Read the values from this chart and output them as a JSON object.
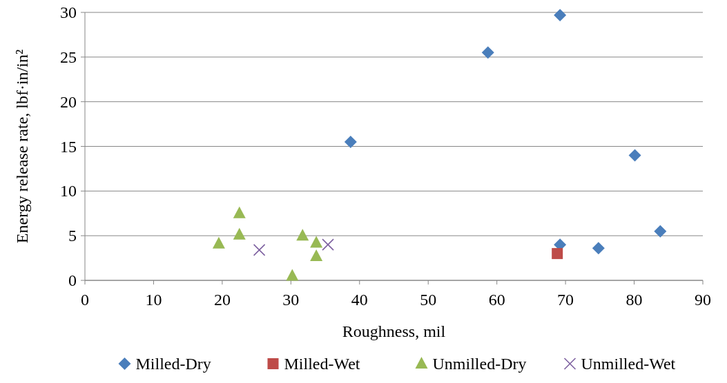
{
  "chart_data": {
    "type": "scatter",
    "xlabel": "Roughness, mil",
    "ylabel": "Energy release rate, lbf·in/in²",
    "xlim": [
      0,
      90
    ],
    "xticks": [
      0,
      10,
      20,
      30,
      40,
      50,
      60,
      70,
      80,
      90
    ],
    "ylim": [
      0,
      30
    ],
    "yticks": [
      0,
      5,
      10,
      15,
      20,
      25,
      30
    ],
    "grid": "y",
    "legend": "bottom",
    "series": [
      {
        "name": "Milled-Dry",
        "color": "#4a7ebb",
        "marker": "diamond",
        "x": [
          69.2,
          58.7,
          38.7,
          80.1,
          83.8,
          74.8,
          69.2
        ],
        "values": [
          29.7,
          25.5,
          15.5,
          14.0,
          5.5,
          3.6,
          4.0
        ]
      },
      {
        "name": "Milled-Wet",
        "color": "#be4b48",
        "marker": "square",
        "x": [
          68.8
        ],
        "values": [
          3.0
        ]
      },
      {
        "name": "Unmilled-Dry",
        "color": "#98b954",
        "marker": "triangle",
        "x": [
          19.5,
          22.5,
          22.5,
          31.7,
          33.7,
          33.7,
          30.2
        ],
        "values": [
          4.1,
          7.5,
          5.1,
          5.0,
          4.2,
          2.7,
          0.5
        ]
      },
      {
        "name": "Unmilled-Wet",
        "color": "#7d60a0",
        "marker": "cross",
        "x": [
          25.4,
          35.4
        ],
        "values": [
          3.4,
          4.0
        ]
      }
    ]
  }
}
